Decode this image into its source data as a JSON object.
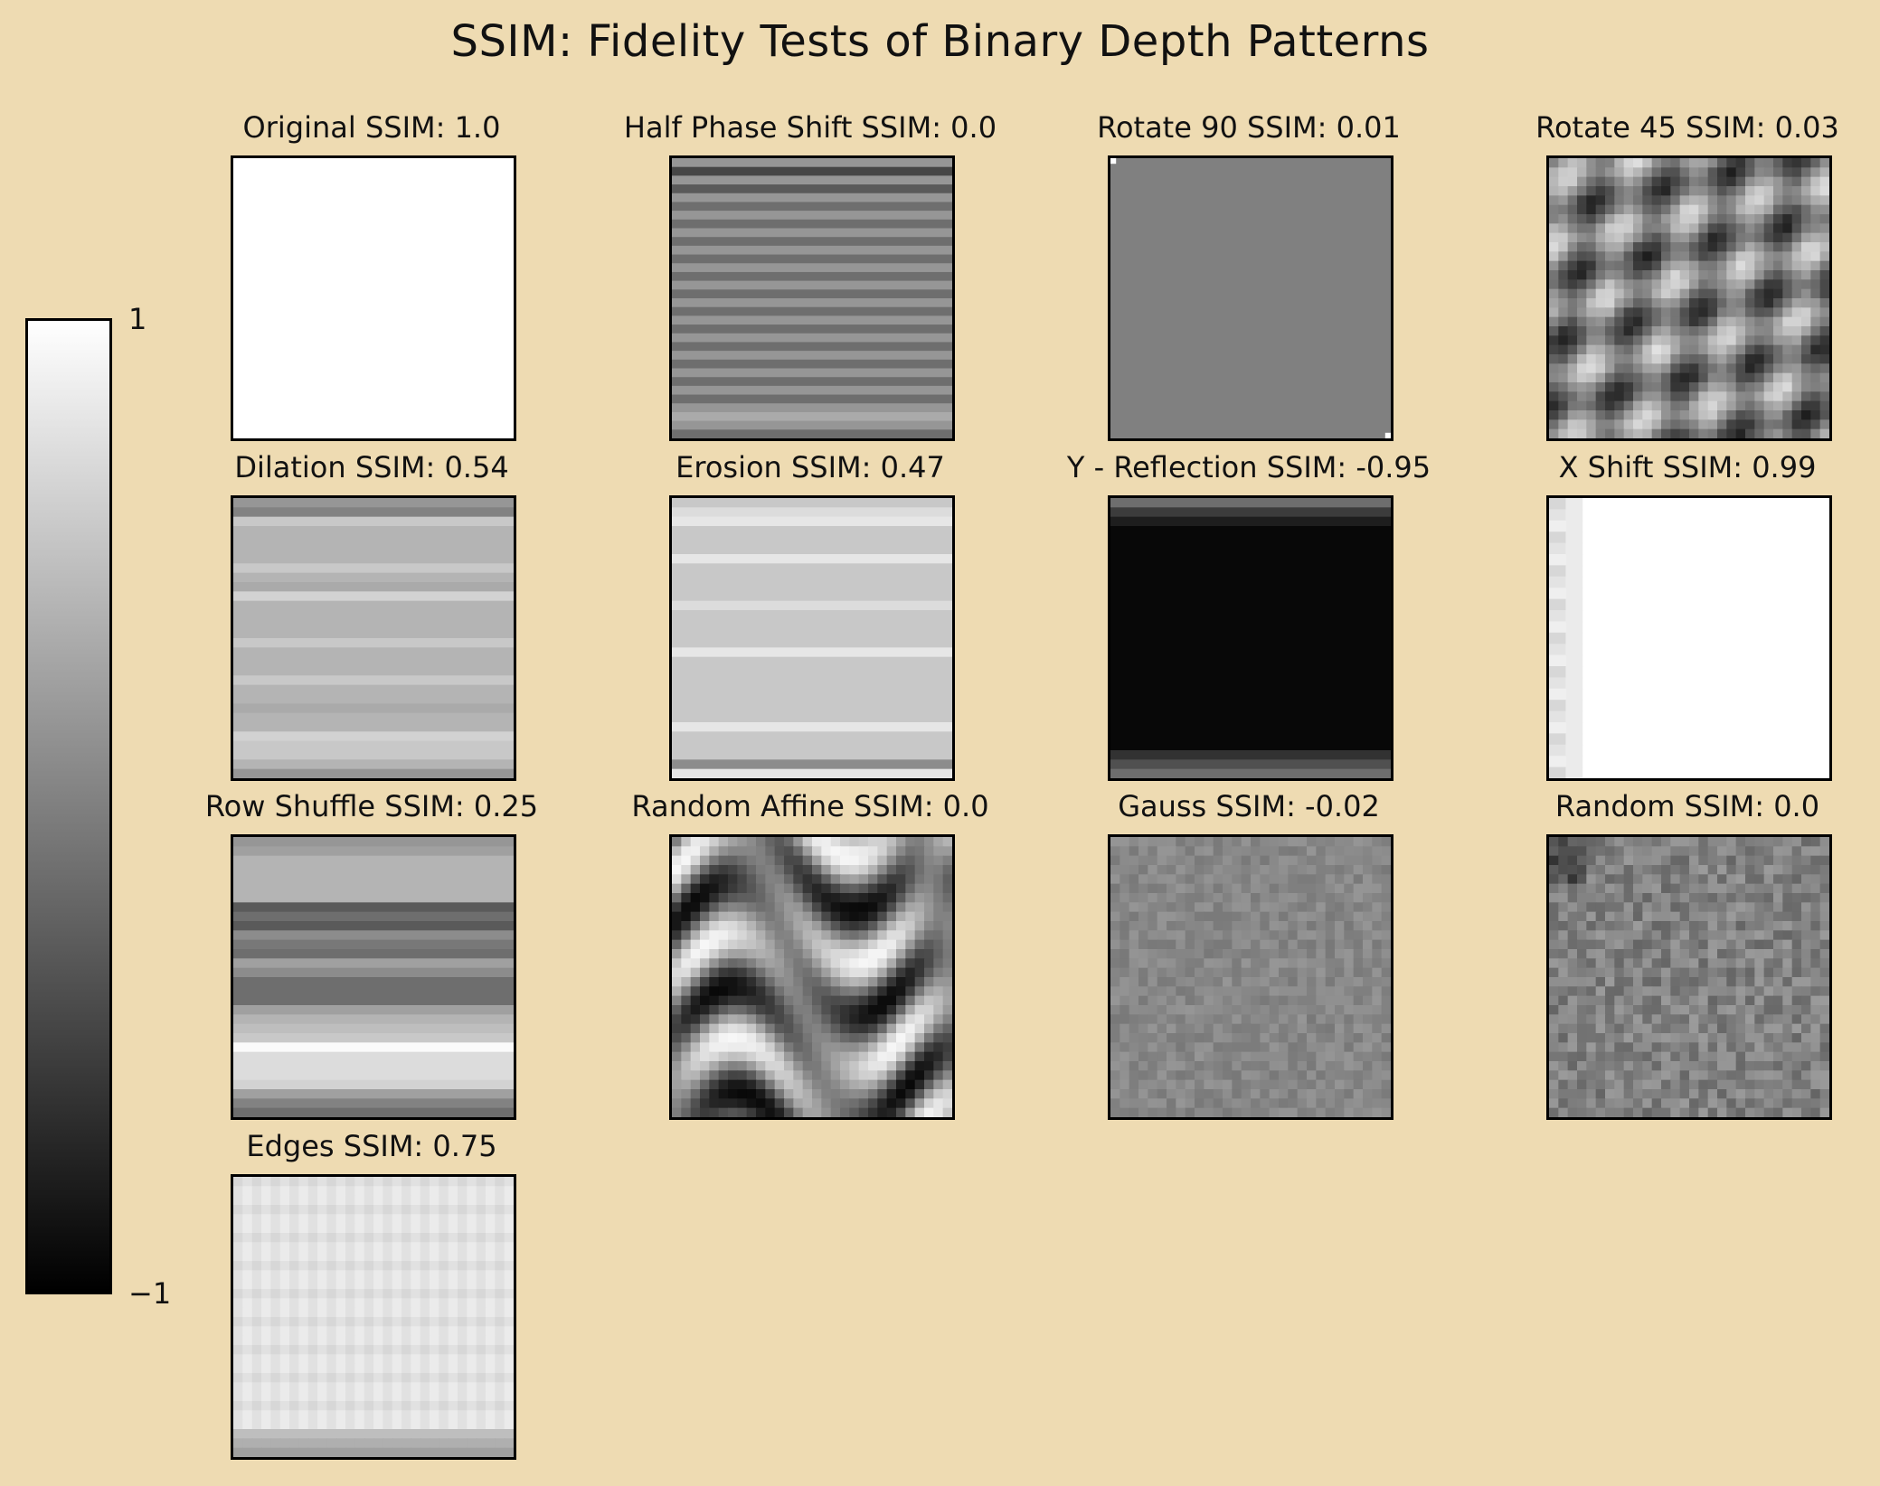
{
  "title": "SSIM: Fidelity Tests of Binary Depth Patterns",
  "colorbar": {
    "max_label": "1",
    "min_label": "−1",
    "range": [
      -1,
      1
    ],
    "colormap": "gray"
  },
  "chart_data": {
    "type": "heatmap",
    "title": "SSIM: Fidelity Tests of Binary Depth Patterns",
    "value_range": [
      -1,
      1
    ],
    "panels": [
      {
        "title": "Original  SSIM: 1.0",
        "ssim": 1.0,
        "pattern": "uniform"
      },
      {
        "title": "Half Phase Shift  SSIM: 0.0",
        "ssim": 0.0,
        "pattern": "horizontal-stripes"
      },
      {
        "title": "Rotate 90  SSIM: 0.01",
        "ssim": 0.01,
        "pattern": "uniform"
      },
      {
        "title": "Rotate 45  SSIM: 0.03",
        "ssim": 0.03,
        "pattern": "diagonal-blobs"
      },
      {
        "title": "Dilation  SSIM: 0.54",
        "ssim": 0.54,
        "pattern": "horizontal-stripes"
      },
      {
        "title": "Erosion  SSIM: 0.47",
        "ssim": 0.47,
        "pattern": "horizontal-stripes"
      },
      {
        "title": "Y - Reflection  SSIM: -0.95",
        "ssim": -0.95,
        "pattern": "dark-band"
      },
      {
        "title": "X Shift  SSIM: 0.99",
        "ssim": 0.99,
        "pattern": "left-edge"
      },
      {
        "title": "Row Shuffle  SSIM: 0.25",
        "ssim": 0.25,
        "pattern": "horizontal-stripes"
      },
      {
        "title": "Random Affine  SSIM: 0.0",
        "ssim": 0.0,
        "pattern": "diagonal-waves"
      },
      {
        "title": "Gauss  SSIM: -0.02",
        "ssim": -0.02,
        "pattern": "noise"
      },
      {
        "title": "Random  SSIM: 0.0",
        "ssim": 0.0,
        "pattern": "noise"
      },
      {
        "title": "Edges  SSIM: 0.75",
        "ssim": 0.75,
        "pattern": "grid"
      }
    ]
  }
}
